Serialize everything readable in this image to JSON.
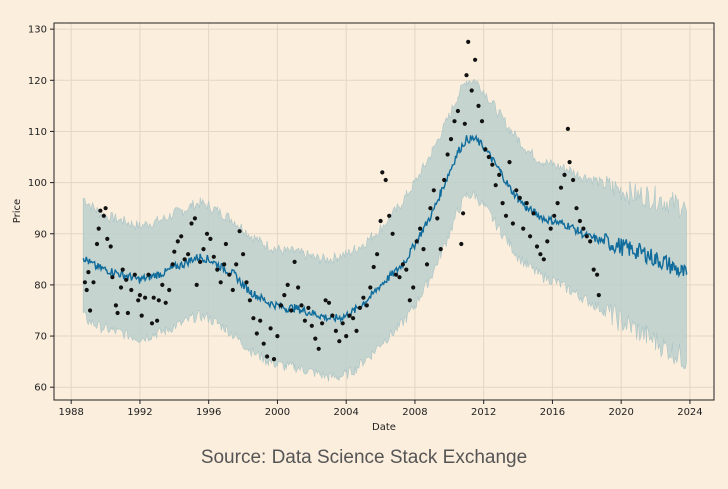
{
  "chart_data": {
    "type": "line",
    "title": "",
    "xlabel": "Date",
    "ylabel": "Price",
    "xlim": [
      1987.0,
      2025.4
    ],
    "ylim": [
      57.5,
      131.2
    ],
    "xticks": [
      1988,
      1992,
      1996,
      2000,
      2004,
      2008,
      2012,
      2016,
      2020,
      2024
    ],
    "xtick_labels": [
      "1988",
      "1992",
      "1996",
      "2000",
      "2004",
      "2008",
      "2012",
      "2016",
      "2020",
      "2024"
    ],
    "yticks": [
      60,
      70,
      80,
      90,
      100,
      110,
      120,
      130
    ],
    "ytick_labels": [
      "60",
      "70",
      "80",
      "90",
      "100",
      "110",
      "120",
      "130"
    ],
    "grid": true,
    "legend": "none",
    "colors": {
      "background": "#fbeedd",
      "forecast_line": "#0f6c9c",
      "uncertainty_band": "#bccfcc",
      "observed_points": "#111111",
      "grid": "#e4d6c4",
      "axis": "#222222"
    },
    "series": [
      {
        "name": "forecast_yhat",
        "kind": "line",
        "x": [
          1988.7,
          1989.0,
          1989.5,
          1990.0,
          1990.5,
          1991.0,
          1991.5,
          1992.0,
          1992.5,
          1993.0,
          1993.5,
          1994.0,
          1994.5,
          1995.0,
          1995.5,
          1996.0,
          1996.5,
          1997.0,
          1997.5,
          1998.0,
          1998.5,
          1999.0,
          1999.5,
          2000.0,
          2000.5,
          2001.0,
          2001.5,
          2002.0,
          2002.5,
          2003.0,
          2003.5,
          2004.0,
          2004.5,
          2005.0,
          2005.5,
          2006.0,
          2006.5,
          2007.0,
          2007.5,
          2008.0,
          2008.5,
          2009.0,
          2009.5,
          2010.0,
          2010.5,
          2011.0,
          2011.5,
          2012.0,
          2012.5,
          2013.0,
          2013.5,
          2014.0,
          2014.5,
          2015.0,
          2015.5,
          2016.0,
          2016.5,
          2017.0,
          2017.5,
          2018.0,
          2018.5,
          2019.0,
          2019.5,
          2020.0,
          2020.5,
          2021.0,
          2021.5,
          2022.0,
          2022.5,
          2023.0,
          2023.5,
          2023.8
        ],
        "values": [
          85.5,
          84.5,
          83.5,
          83.0,
          82.5,
          82.0,
          81.5,
          81.0,
          81.5,
          82.0,
          82.5,
          83.5,
          84.0,
          85.0,
          85.5,
          85.0,
          84.0,
          83.0,
          82.0,
          80.0,
          78.5,
          77.5,
          76.5,
          76.0,
          75.5,
          75.5,
          75.0,
          74.5,
          74.0,
          73.5,
          73.5,
          74.0,
          75.0,
          76.5,
          78.0,
          80.0,
          81.5,
          83.0,
          85.0,
          88.0,
          91.0,
          94.0,
          98.0,
          102.0,
          106.0,
          108.5,
          108.5,
          107.0,
          104.5,
          102.0,
          99.0,
          97.0,
          95.0,
          94.0,
          93.0,
          92.5,
          92.0,
          91.5,
          90.5,
          89.5,
          89.0,
          88.5,
          88.0,
          87.5,
          87.0,
          86.5,
          86.0,
          85.0,
          84.5,
          83.5,
          82.5,
          82.0
        ]
      },
      {
        "name": "uncertainty_upper",
        "kind": "band_upper",
        "x": [
          1988.7,
          1989.0,
          1989.5,
          1990.0,
          1990.5,
          1991.0,
          1991.5,
          1992.0,
          1992.5,
          1993.0,
          1993.5,
          1994.0,
          1994.5,
          1995.0,
          1995.5,
          1996.0,
          1996.5,
          1997.0,
          1997.5,
          1998.0,
          1998.5,
          1999.0,
          1999.5,
          2000.0,
          2000.5,
          2001.0,
          2001.5,
          2002.0,
          2002.5,
          2003.0,
          2003.5,
          2004.0,
          2004.5,
          2005.0,
          2005.5,
          2006.0,
          2006.5,
          2007.0,
          2007.5,
          2008.0,
          2008.5,
          2009.0,
          2009.5,
          2010.0,
          2010.5,
          2011.0,
          2011.5,
          2012.0,
          2012.5,
          2013.0,
          2013.5,
          2014.0,
          2014.5,
          2015.0,
          2015.5,
          2016.0,
          2016.5,
          2017.0,
          2017.5,
          2018.0,
          2018.5,
          2019.0,
          2019.5,
          2020.0,
          2020.5,
          2021.0,
          2021.5,
          2022.0,
          2022.5,
          2023.0,
          2023.5,
          2023.8
        ],
        "values": [
          97.0,
          96.0,
          94.5,
          93.5,
          93.0,
          92.5,
          92.0,
          91.5,
          92.0,
          92.5,
          93.0,
          94.0,
          94.5,
          95.5,
          96.0,
          95.5,
          94.5,
          93.5,
          92.5,
          91.0,
          89.5,
          88.5,
          87.5,
          87.0,
          86.5,
          86.5,
          86.0,
          85.5,
          85.0,
          85.0,
          85.5,
          86.0,
          87.0,
          88.0,
          89.5,
          91.0,
          93.0,
          95.0,
          97.5,
          100.0,
          103.0,
          106.0,
          109.5,
          113.0,
          117.0,
          120.0,
          120.0,
          118.0,
          115.5,
          113.0,
          110.5,
          108.5,
          106.5,
          105.0,
          104.0,
          103.5,
          103.0,
          102.5,
          101.5,
          101.0,
          100.5,
          99.5,
          99.0,
          98.5,
          98.0,
          97.5,
          97.5,
          97.0,
          96.5,
          96.0,
          95.5,
          94.5
        ]
      },
      {
        "name": "uncertainty_lower",
        "kind": "band_lower",
        "x": [
          1988.7,
          1989.0,
          1989.5,
          1990.0,
          1990.5,
          1991.0,
          1991.5,
          1992.0,
          1992.5,
          1993.0,
          1993.5,
          1994.0,
          1994.5,
          1995.0,
          1995.5,
          1996.0,
          1996.5,
          1997.0,
          1997.5,
          1998.0,
          1998.5,
          1999.0,
          1999.5,
          2000.0,
          2000.5,
          2001.0,
          2001.5,
          2002.0,
          2002.5,
          2003.0,
          2003.5,
          2004.0,
          2004.5,
          2005.0,
          2005.5,
          2006.0,
          2006.5,
          2007.0,
          2007.5,
          2008.0,
          2008.5,
          2009.0,
          2009.5,
          2010.0,
          2010.5,
          2011.0,
          2011.5,
          2012.0,
          2012.5,
          2013.0,
          2013.5,
          2014.0,
          2014.5,
          2015.0,
          2015.5,
          2016.0,
          2016.5,
          2017.0,
          2017.5,
          2018.0,
          2018.5,
          2019.0,
          2019.5,
          2020.0,
          2020.5,
          2021.0,
          2021.5,
          2022.0,
          2022.5,
          2023.0,
          2023.5,
          2023.8
        ],
        "values": [
          74.0,
          73.0,
          72.0,
          71.5,
          71.0,
          70.5,
          70.0,
          69.5,
          70.0,
          70.5,
          71.0,
          72.0,
          72.5,
          73.5,
          74.0,
          73.5,
          72.5,
          71.5,
          70.0,
          68.5,
          67.0,
          66.0,
          65.0,
          64.5,
          64.0,
          64.0,
          63.5,
          63.0,
          62.5,
          62.0,
          62.0,
          62.5,
          63.5,
          65.0,
          66.5,
          68.5,
          70.0,
          71.5,
          73.5,
          76.0,
          79.0,
          82.0,
          86.0,
          90.0,
          94.5,
          97.5,
          97.5,
          95.5,
          93.0,
          90.5,
          88.0,
          85.5,
          84.0,
          82.5,
          81.5,
          81.0,
          80.0,
          79.0,
          78.0,
          77.0,
          76.0,
          75.0,
          74.0,
          73.0,
          72.0,
          71.0,
          70.0,
          69.0,
          68.0,
          67.0,
          66.0,
          65.0
        ]
      },
      {
        "name": "observed",
        "kind": "scatter",
        "points": [
          [
            1988.8,
            80.5
          ],
          [
            1988.9,
            79.0
          ],
          [
            1989.0,
            82.5
          ],
          [
            1989.1,
            75.0
          ],
          [
            1989.3,
            80.5
          ],
          [
            1989.5,
            88.0
          ],
          [
            1989.6,
            91.0
          ],
          [
            1989.7,
            94.5
          ],
          [
            1989.9,
            93.5
          ],
          [
            1990.0,
            95.0
          ],
          [
            1990.1,
            89.0
          ],
          [
            1990.3,
            87.5
          ],
          [
            1990.4,
            81.5
          ],
          [
            1990.6,
            76.0
          ],
          [
            1990.7,
            74.5
          ],
          [
            1990.9,
            79.5
          ],
          [
            1991.0,
            83.0
          ],
          [
            1991.2,
            81.0
          ],
          [
            1991.3,
            74.5
          ],
          [
            1991.5,
            79.0
          ],
          [
            1991.7,
            82.0
          ],
          [
            1991.9,
            77.0
          ],
          [
            1992.0,
            78.0
          ],
          [
            1992.1,
            74.0
          ],
          [
            1992.3,
            77.5
          ],
          [
            1992.5,
            82.0
          ],
          [
            1992.7,
            72.5
          ],
          [
            1992.8,
            77.5
          ],
          [
            1993.0,
            73.0
          ],
          [
            1993.1,
            77.0
          ],
          [
            1993.3,
            80.0
          ],
          [
            1993.5,
            76.5
          ],
          [
            1993.7,
            79.0
          ],
          [
            1993.9,
            84.0
          ],
          [
            1994.0,
            86.5
          ],
          [
            1994.2,
            88.5
          ],
          [
            1994.4,
            89.5
          ],
          [
            1994.6,
            85.0
          ],
          [
            1994.8,
            86.0
          ],
          [
            1995.0,
            92.0
          ],
          [
            1995.2,
            93.0
          ],
          [
            1995.3,
            80.0
          ],
          [
            1995.5,
            84.5
          ],
          [
            1995.7,
            87.0
          ],
          [
            1995.9,
            90.0
          ],
          [
            1996.1,
            89.0
          ],
          [
            1996.3,
            85.5
          ],
          [
            1996.5,
            83.0
          ],
          [
            1996.7,
            80.5
          ],
          [
            1996.9,
            84.0
          ],
          [
            1997.0,
            88.0
          ],
          [
            1997.2,
            82.0
          ],
          [
            1997.4,
            79.0
          ],
          [
            1997.6,
            84.0
          ],
          [
            1997.8,
            90.5
          ],
          [
            1998.0,
            86.0
          ],
          [
            1998.2,
            80.5
          ],
          [
            1998.4,
            77.0
          ],
          [
            1998.6,
            73.5
          ],
          [
            1998.8,
            70.5
          ],
          [
            1999.0,
            73.0
          ],
          [
            1999.2,
            68.5
          ],
          [
            1999.4,
            66.0
          ],
          [
            1999.6,
            71.5
          ],
          [
            1999.8,
            65.5
          ],
          [
            2000.0,
            70.0
          ],
          [
            2000.2,
            76.0
          ],
          [
            2000.4,
            78.0
          ],
          [
            2000.6,
            80.0
          ],
          [
            2000.8,
            75.0
          ],
          [
            2001.0,
            84.5
          ],
          [
            2001.2,
            79.5
          ],
          [
            2001.4,
            76.0
          ],
          [
            2001.6,
            73.0
          ],
          [
            2001.8,
            75.5
          ],
          [
            2002.0,
            72.0
          ],
          [
            2002.2,
            69.5
          ],
          [
            2002.4,
            67.5
          ],
          [
            2002.6,
            72.5
          ],
          [
            2002.8,
            77.0
          ],
          [
            2003.0,
            76.5
          ],
          [
            2003.2,
            74.0
          ],
          [
            2003.4,
            71.0
          ],
          [
            2003.6,
            69.0
          ],
          [
            2003.8,
            72.5
          ],
          [
            2004.0,
            70.0
          ],
          [
            2004.2,
            74.0
          ],
          [
            2004.4,
            73.5
          ],
          [
            2004.6,
            71.0
          ],
          [
            2004.8,
            75.5
          ],
          [
            2005.0,
            77.5
          ],
          [
            2005.2,
            76.0
          ],
          [
            2005.4,
            79.5
          ],
          [
            2005.6,
            83.5
          ],
          [
            2005.8,
            86.0
          ],
          [
            2006.0,
            92.5
          ],
          [
            2006.1,
            102.0
          ],
          [
            2006.3,
            100.5
          ],
          [
            2006.5,
            93.5
          ],
          [
            2006.7,
            90.0
          ],
          [
            2006.9,
            82.0
          ],
          [
            2007.1,
            81.5
          ],
          [
            2007.3,
            84.0
          ],
          [
            2007.5,
            83.0
          ],
          [
            2007.7,
            77.0
          ],
          [
            2007.9,
            79.5
          ],
          [
            2008.1,
            88.5
          ],
          [
            2008.3,
            91.0
          ],
          [
            2008.5,
            87.0
          ],
          [
            2008.7,
            84.0
          ],
          [
            2008.9,
            95.0
          ],
          [
            2009.1,
            98.5
          ],
          [
            2009.3,
            93.0
          ],
          [
            2009.5,
            87.0
          ],
          [
            2009.7,
            100.5
          ],
          [
            2009.9,
            105.5
          ],
          [
            2010.1,
            108.5
          ],
          [
            2010.3,
            112.0
          ],
          [
            2010.5,
            114.0
          ],
          [
            2010.7,
            88.0
          ],
          [
            2010.8,
            94.0
          ],
          [
            2010.9,
            111.5
          ],
          [
            2011.0,
            121.0
          ],
          [
            2011.1,
            127.5
          ],
          [
            2011.3,
            118.0
          ],
          [
            2011.5,
            124.0
          ],
          [
            2011.7,
            115.0
          ],
          [
            2011.9,
            112.0
          ],
          [
            2012.1,
            106.5
          ],
          [
            2012.3,
            105.0
          ],
          [
            2012.5,
            103.5
          ],
          [
            2012.7,
            99.5
          ],
          [
            2012.9,
            101.5
          ],
          [
            2013.1,
            96.0
          ],
          [
            2013.3,
            93.5
          ],
          [
            2013.5,
            104.0
          ],
          [
            2013.7,
            92.0
          ],
          [
            2013.9,
            98.5
          ],
          [
            2014.1,
            97.0
          ],
          [
            2014.3,
            91.0
          ],
          [
            2014.5,
            96.0
          ],
          [
            2014.7,
            89.5
          ],
          [
            2014.9,
            94.0
          ],
          [
            2015.1,
            87.5
          ],
          [
            2015.3,
            86.0
          ],
          [
            2015.5,
            85.0
          ],
          [
            2015.7,
            88.5
          ],
          [
            2015.9,
            91.0
          ],
          [
            2016.1,
            93.5
          ],
          [
            2016.3,
            96.0
          ],
          [
            2016.5,
            99.0
          ],
          [
            2016.7,
            101.5
          ],
          [
            2016.9,
            110.5
          ],
          [
            2017.0,
            104.0
          ],
          [
            2017.2,
            100.5
          ],
          [
            2017.4,
            95.0
          ],
          [
            2017.6,
            92.5
          ],
          [
            2017.8,
            91.0
          ],
          [
            2018.0,
            89.5
          ],
          [
            2018.2,
            88.5
          ],
          [
            2018.4,
            83.0
          ],
          [
            2018.6,
            82.0
          ],
          [
            2018.7,
            78.0
          ]
        ]
      }
    ]
  },
  "source": "Source: Data Science Stack Exchange"
}
